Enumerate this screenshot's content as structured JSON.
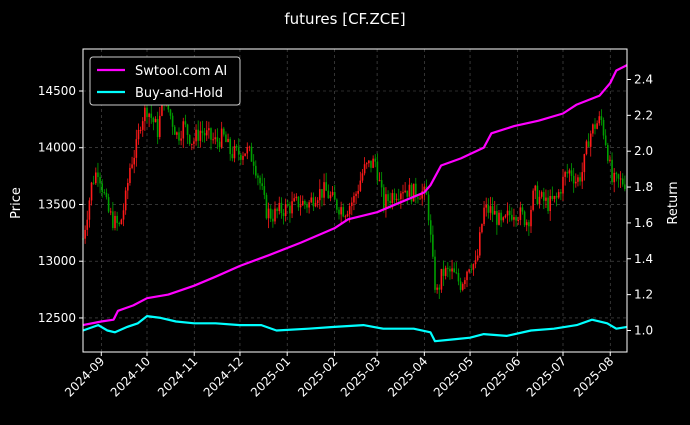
{
  "chart_data": {
    "type": "line",
    "title": "futures [CF.ZCE]",
    "xlabel": "",
    "ylabel_left": "Price",
    "ylabel_right": "Return",
    "x_range": [
      "2024-08-20",
      "2025-08-12"
    ],
    "x_ticks": [
      "2024-09",
      "2024-10",
      "2024-11",
      "2024-12",
      "2025-01",
      "2025-02",
      "2025-03",
      "2025-04",
      "2025-05",
      "2025-06",
      "2025-07",
      "2025-08"
    ],
    "y_left_ticks": [
      "12500",
      "13000",
      "13500",
      "14000",
      "14500"
    ],
    "y_left_lim": [
      12200,
      14870
    ],
    "y_right_ticks": [
      "1.0",
      "1.2",
      "1.4",
      "1.6",
      "1.8",
      "2.0",
      "2.2",
      "2.4"
    ],
    "y_right_lim": [
      0.88,
      2.57
    ],
    "grid": true,
    "legend_placement": "top-left",
    "colors": {
      "background": "#000000",
      "up_candle": "#ff1a1a",
      "down_candle": "#00a000",
      "ai_line": "#ff00ff",
      "hold_line": "#00ffff",
      "grid": "#555555"
    },
    "price_series": {
      "name": "",
      "points": [
        [
          "2024-08-20",
          13200
        ],
        [
          "2024-08-26",
          13700
        ],
        [
          "2024-08-30",
          13820
        ],
        [
          "2024-09-05",
          13450
        ],
        [
          "2024-09-09",
          13350
        ],
        [
          "2024-09-13",
          13300
        ],
        [
          "2024-09-17",
          13550
        ],
        [
          "2024-09-20",
          13850
        ],
        [
          "2024-09-24",
          14000
        ],
        [
          "2024-09-27",
          14250
        ],
        [
          "2024-10-01",
          14350
        ],
        [
          "2024-10-08",
          14150
        ],
        [
          "2024-10-12",
          14450
        ],
        [
          "2024-10-16",
          14300
        ],
        [
          "2024-10-21",
          14100
        ],
        [
          "2024-10-25",
          14200
        ],
        [
          "2024-10-31",
          14050
        ],
        [
          "2024-11-05",
          14150
        ],
        [
          "2024-11-10",
          14100
        ],
        [
          "2024-11-15",
          14050
        ],
        [
          "2024-11-20",
          14100
        ],
        [
          "2024-11-25",
          13950
        ],
        [
          "2024-11-30",
          13950
        ],
        [
          "2024-12-05",
          13980
        ],
        [
          "2024-12-10",
          13900
        ],
        [
          "2024-12-14",
          13700
        ],
        [
          "2024-12-18",
          13450
        ],
        [
          "2024-12-22",
          13400
        ],
        [
          "2024-12-28",
          13450
        ],
        [
          "2025-01-03",
          13480
        ],
        [
          "2025-01-09",
          13520
        ],
        [
          "2025-01-15",
          13500
        ],
        [
          "2025-01-20",
          13600
        ],
        [
          "2025-01-26",
          13620
        ],
        [
          "2025-02-02",
          13500
        ],
        [
          "2025-02-08",
          13450
        ],
        [
          "2025-02-14",
          13550
        ],
        [
          "2025-02-20",
          13800
        ],
        [
          "2025-02-24",
          13850
        ],
        [
          "2025-02-28",
          13880
        ],
        [
          "2025-03-05",
          13500
        ],
        [
          "2025-03-12",
          13600
        ],
        [
          "2025-03-18",
          13650
        ],
        [
          "2025-03-24",
          13600
        ],
        [
          "2025-03-30",
          13620
        ],
        [
          "2025-04-03",
          13550
        ],
        [
          "2025-04-07",
          12900
        ],
        [
          "2025-04-09",
          12700
        ],
        [
          "2025-04-13",
          12900
        ],
        [
          "2025-04-19",
          12900
        ],
        [
          "2025-04-25",
          12800
        ],
        [
          "2025-05-01",
          13000
        ],
        [
          "2025-05-05",
          12950
        ],
        [
          "2025-05-10",
          13450
        ],
        [
          "2025-05-14",
          13450
        ],
        [
          "2025-05-18",
          13400
        ],
        [
          "2025-05-22",
          13300
        ],
        [
          "2025-05-26",
          13400
        ],
        [
          "2025-05-30",
          13450
        ],
        [
          "2025-06-04",
          13400
        ],
        [
          "2025-06-08",
          13350
        ],
        [
          "2025-06-12",
          13600
        ],
        [
          "2025-06-16",
          13550
        ],
        [
          "2025-06-22",
          13500
        ],
        [
          "2025-06-27",
          13550
        ],
        [
          "2025-07-02",
          13750
        ],
        [
          "2025-07-06",
          13800
        ],
        [
          "2025-07-10",
          13700
        ],
        [
          "2025-07-14",
          13800
        ],
        [
          "2025-07-18",
          14100
        ],
        [
          "2025-07-22",
          14200
        ],
        [
          "2025-07-26",
          14250
        ],
        [
          "2025-07-30",
          14000
        ],
        [
          "2025-08-02",
          13700
        ],
        [
          "2025-08-06",
          13700
        ],
        [
          "2025-08-12",
          13700
        ]
      ]
    },
    "series": [
      {
        "name": "Swtool.com AI",
        "color": "#ff00ff",
        "points": [
          [
            "2024-08-20",
            1.03
          ],
          [
            "2024-09-01",
            1.05
          ],
          [
            "2024-09-09",
            1.06
          ],
          [
            "2024-09-12",
            1.11
          ],
          [
            "2024-09-22",
            1.14
          ],
          [
            "2024-10-01",
            1.18
          ],
          [
            "2024-10-15",
            1.2
          ],
          [
            "2024-11-01",
            1.25
          ],
          [
            "2024-11-15",
            1.3
          ],
          [
            "2024-12-01",
            1.36
          ],
          [
            "2024-12-20",
            1.42
          ],
          [
            "2025-01-10",
            1.49
          ],
          [
            "2025-02-01",
            1.57
          ],
          [
            "2025-02-10",
            1.62
          ],
          [
            "2025-03-01",
            1.66
          ],
          [
            "2025-03-15",
            1.71
          ],
          [
            "2025-04-01",
            1.77
          ],
          [
            "2025-04-05",
            1.81
          ],
          [
            "2025-04-12",
            1.92
          ],
          [
            "2025-04-25",
            1.96
          ],
          [
            "2025-05-10",
            2.02
          ],
          [
            "2025-05-15",
            2.1
          ],
          [
            "2025-05-30",
            2.14
          ],
          [
            "2025-06-15",
            2.17
          ],
          [
            "2025-07-01",
            2.21
          ],
          [
            "2025-07-10",
            2.26
          ],
          [
            "2025-07-25",
            2.31
          ],
          [
            "2025-08-01",
            2.38
          ],
          [
            "2025-08-05",
            2.45
          ],
          [
            "2025-08-12",
            2.48
          ]
        ]
      },
      {
        "name": "Buy-and-Hold",
        "color": "#00ffff",
        "points": [
          [
            "2024-08-20",
            1.0
          ],
          [
            "2024-08-30",
            1.03
          ],
          [
            "2024-09-05",
            1.0
          ],
          [
            "2024-09-10",
            0.99
          ],
          [
            "2024-09-18",
            1.02
          ],
          [
            "2024-09-25",
            1.04
          ],
          [
            "2024-10-01",
            1.08
          ],
          [
            "2024-10-10",
            1.07
          ],
          [
            "2024-10-20",
            1.05
          ],
          [
            "2024-11-01",
            1.04
          ],
          [
            "2024-11-15",
            1.04
          ],
          [
            "2024-12-01",
            1.03
          ],
          [
            "2024-12-15",
            1.03
          ],
          [
            "2024-12-25",
            1.0
          ],
          [
            "2025-01-15",
            1.01
          ],
          [
            "2025-02-01",
            1.02
          ],
          [
            "2025-02-20",
            1.03
          ],
          [
            "2025-03-05",
            1.01
          ],
          [
            "2025-03-25",
            1.01
          ],
          [
            "2025-04-05",
            0.99
          ],
          [
            "2025-04-08",
            0.94
          ],
          [
            "2025-04-20",
            0.95
          ],
          [
            "2025-05-01",
            0.96
          ],
          [
            "2025-05-10",
            0.98
          ],
          [
            "2025-05-25",
            0.97
          ],
          [
            "2025-06-10",
            1.0
          ],
          [
            "2025-06-25",
            1.01
          ],
          [
            "2025-07-10",
            1.03
          ],
          [
            "2025-07-20",
            1.06
          ],
          [
            "2025-07-30",
            1.04
          ],
          [
            "2025-08-05",
            1.01
          ],
          [
            "2025-08-12",
            1.02
          ]
        ]
      }
    ]
  }
}
